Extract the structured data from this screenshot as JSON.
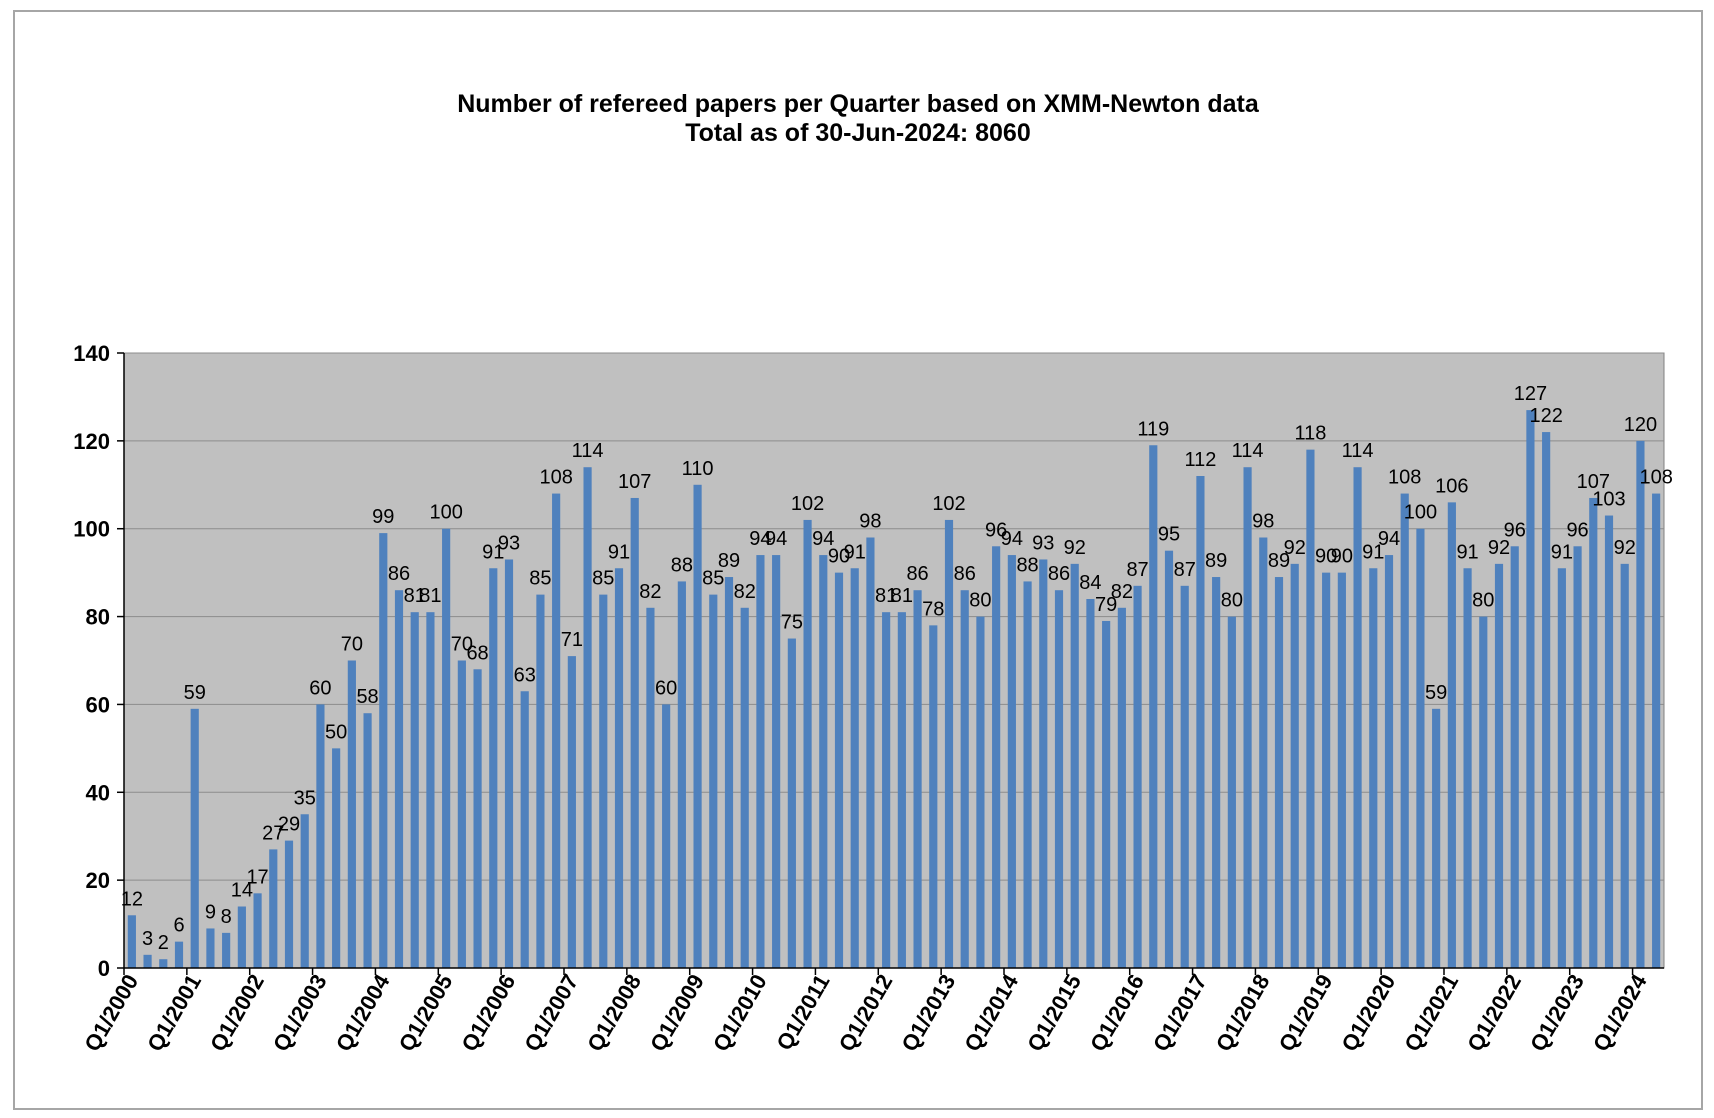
{
  "chart_data": {
    "type": "bar",
    "title": "Number of refereed papers per Quarter based on XMM-Newton data",
    "subtitle": "Total as of 30-Jun-2024: 8060",
    "xlabel": "",
    "ylabel": "",
    "ylim": [
      0,
      140
    ],
    "yticks": [
      0,
      20,
      40,
      60,
      80,
      100,
      120,
      140
    ],
    "grid": true,
    "legend": "none",
    "bar_color": "#4f81bd",
    "plot_background": "#c0c0c0",
    "tick_labels": [
      "Q1/2000",
      "Q1/2001",
      "Q1/2002",
      "Q1/2003",
      "Q1/2004",
      "Q1/2005",
      "Q1/2006",
      "Q1/2007",
      "Q1/2008",
      "Q1/2009",
      "Q1/2010",
      "Q1/2011",
      "Q1/2012",
      "Q1/2013",
      "Q1/2014",
      "Q1/2015",
      "Q1/2016",
      "Q1/2017",
      "Q1/2018",
      "Q1/2019",
      "Q1/2020",
      "Q1/2021",
      "Q1/2022",
      "Q1/2023",
      "Q1/2024"
    ],
    "values": [
      12,
      3,
      2,
      6,
      59,
      9,
      8,
      14,
      17,
      27,
      29,
      35,
      60,
      50,
      70,
      58,
      99,
      86,
      81,
      81,
      100,
      70,
      68,
      91,
      93,
      63,
      85,
      108,
      71,
      114,
      85,
      91,
      107,
      82,
      60,
      88,
      110,
      85,
      89,
      82,
      94,
      94,
      75,
      102,
      94,
      90,
      91,
      98,
      81,
      81,
      86,
      78,
      102,
      86,
      80,
      96,
      94,
      88,
      93,
      86,
      92,
      84,
      79,
      82,
      87,
      119,
      95,
      87,
      112,
      89,
      80,
      114,
      98,
      89,
      92,
      118,
      90,
      90,
      114,
      91,
      94,
      108,
      100,
      59,
      106,
      91,
      80,
      92,
      96,
      127,
      122,
      91,
      96,
      107,
      103,
      92,
      120,
      108
    ]
  }
}
